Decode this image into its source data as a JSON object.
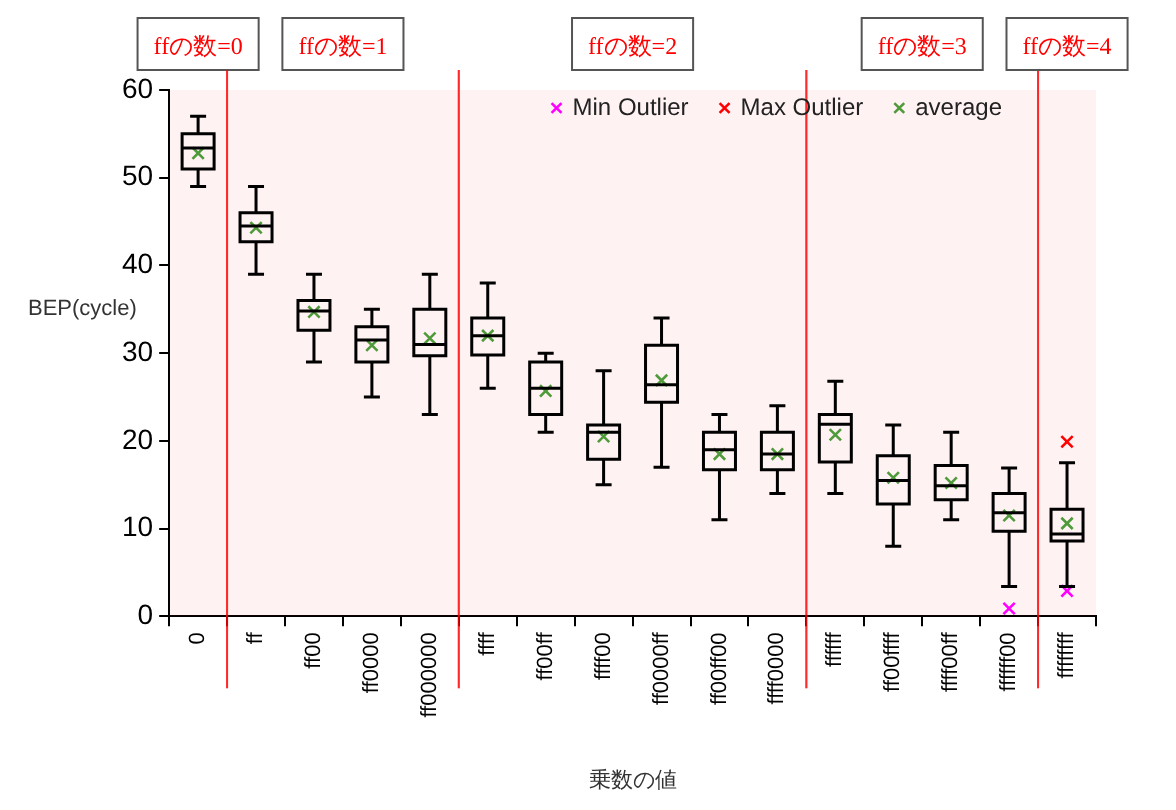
{
  "chart_data": {
    "type": "box",
    "xlabel": "乗数の値",
    "ylabel": "BEP(cycle)",
    "categories": [
      "0",
      "ff",
      "ff00",
      "ff0000",
      "ff000000",
      "ffff",
      "ff00ff",
      "ffff00",
      "ff0000ff",
      "ff00ff00",
      "ffff0000",
      "ffffff",
      "ff00ffff",
      "ffff00ff",
      "ffffff00",
      "ffffffff"
    ],
    "ylim": [
      0,
      60
    ],
    "yticks": [
      0,
      10,
      20,
      30,
      40,
      50,
      60
    ],
    "grid": false,
    "legend": "top right",
    "bands": [
      {
        "axis": "x",
        "from": "0",
        "to": "0",
        "label": "ffの数=0",
        "color": "#ff0000"
      },
      {
        "axis": "x",
        "from": "ff",
        "to": "ff000000",
        "label": "ffの数=1",
        "color": "#ff0000"
      },
      {
        "axis": "x",
        "from": "ffff",
        "to": "ffff0000",
        "label": "ffの数=2",
        "color": "#ff0000"
      },
      {
        "axis": "x",
        "from": "ffffff",
        "to": "ffffff00",
        "label": "ffの数=3",
        "color": "#ff0000"
      },
      {
        "axis": "x",
        "from": "ffffffff",
        "to": "ffffffff",
        "label": "ffの数=4",
        "color": "#ff0000"
      }
    ],
    "series": [
      {
        "type": "box",
        "color": "#000000",
        "boxes": [
          {
            "low": 49,
            "q1": 51,
            "median": 53.4,
            "q3": 55,
            "high": 57
          },
          {
            "low": 39,
            "q1": 42.7,
            "median": 44.5,
            "q3": 46,
            "high": 49
          },
          {
            "low": 29,
            "q1": 32.6,
            "median": 34.8,
            "q3": 36,
            "high": 39
          },
          {
            "low": 25,
            "q1": 29,
            "median": 31.5,
            "q3": 33,
            "high": 35
          },
          {
            "low": 23,
            "q1": 29.7,
            "median": 31,
            "q3": 35,
            "high": 39
          },
          {
            "low": 26,
            "q1": 29.8,
            "median": 32,
            "q3": 34,
            "high": 38
          },
          {
            "low": 21,
            "q1": 23,
            "median": 26,
            "q3": 29,
            "high": 30
          },
          {
            "low": 15,
            "q1": 17.9,
            "median": 21,
            "q3": 21.8,
            "high": 28
          },
          {
            "low": 17,
            "q1": 24.4,
            "median": 26.4,
            "q3": 30.9,
            "high": 34
          },
          {
            "low": 11,
            "q1": 16.7,
            "median": 19,
            "q3": 21,
            "high": 23
          },
          {
            "low": 14,
            "q1": 16.7,
            "median": 18.5,
            "q3": 21,
            "high": 24
          },
          {
            "low": 14,
            "q1": 17.6,
            "median": 21.9,
            "q3": 23,
            "high": 26.8
          },
          {
            "low": 8,
            "q1": 12.8,
            "median": 15.5,
            "q3": 18.3,
            "high": 21.8
          },
          {
            "low": 11,
            "q1": 13.3,
            "median": 14.9,
            "q3": 17.2,
            "high": 21
          },
          {
            "low": 3.4,
            "q1": 9.7,
            "median": 11.8,
            "q3": 14,
            "high": 16.9
          },
          {
            "low": 3.4,
            "q1": 8.6,
            "median": 9.4,
            "q3": 12.2,
            "high": 17.5
          }
        ]
      },
      {
        "type": "scatter",
        "name": "Min Outlier",
        "color": "#ff00ff",
        "marker": "cross",
        "x": [
          "ffffff00",
          "ffffffff"
        ],
        "values": [
          0.9,
          2.9
        ]
      },
      {
        "type": "scatter",
        "name": "Max Outlier",
        "color": "#ff0000",
        "marker": "cross",
        "x": [
          "ffffffff"
        ],
        "values": [
          19.9
        ]
      },
      {
        "type": "scatter",
        "name": "average",
        "color": "#4f9a3a",
        "marker": "cross",
        "x": [
          "0",
          "ff",
          "ff00",
          "ff0000",
          "ff000000",
          "ffff",
          "ff00ff",
          "ffff00",
          "ff0000ff",
          "ff00ff00",
          "ffff0000",
          "ffffff",
          "ff00ffff",
          "ffff00ff",
          "ffffff00",
          "ffffffff"
        ],
        "values": [
          52.8,
          44.3,
          34.7,
          30.9,
          31.7,
          32,
          25.7,
          20.5,
          26.9,
          18.5,
          18.5,
          20.7,
          15.8,
          15.2,
          11.5,
          10.6
        ]
      }
    ]
  }
}
